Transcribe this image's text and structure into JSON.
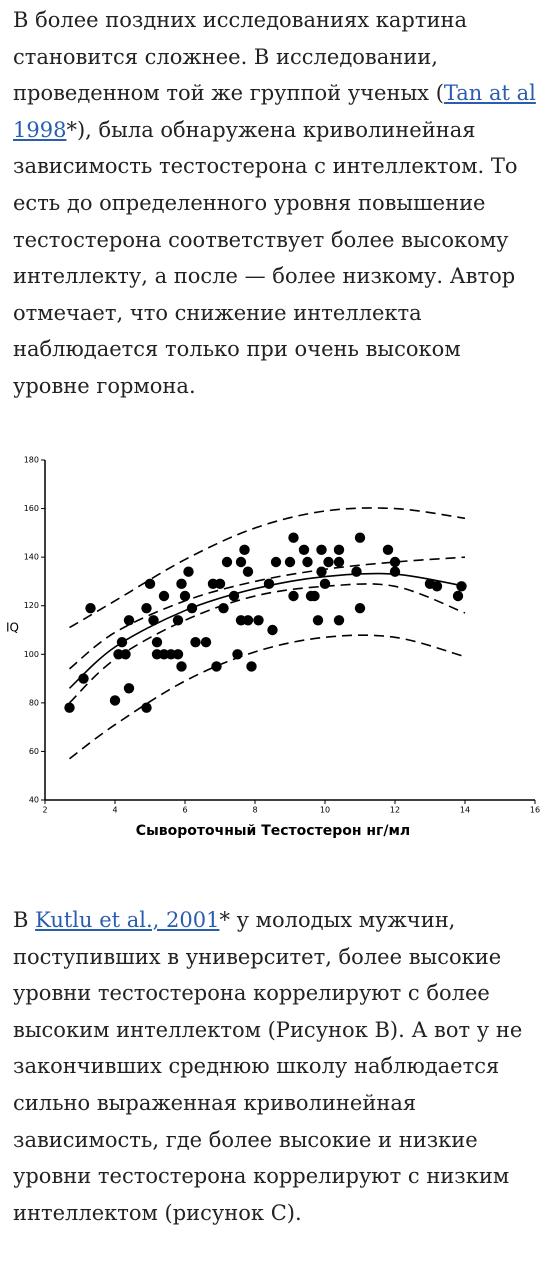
{
  "paragraphs": [
    {
      "before": "В более поздних исследованиях картина становится сложнее. В исследовании, проведенном той же группой ученых (",
      "link": "Tan at al 1998",
      "after": "*), была обнаружена криволинейная зависимость тестостерона с интеллектом. То есть до определенного уровня повышение тестостерона соответствует более высокому интеллекту, а после — более низкому. Автор отмечает, что снижение интеллекта наблюдается только при очень высоком уровне гормона."
    },
    {
      "before": "В ",
      "link": "Kutlu et al., 2001",
      "after": "* у молодых мужчин, поступивших в университет, более высокие уровни тестостерона коррелируют с более высоким интеллектом (Рисунок B). А вот у не закончивших среднюю школу наблюдается сильно выраженная криволинейная зависимость, где более высокие и низкие уровни тестостерона коррелируют с низким интеллектом (рисунок C)."
    }
  ],
  "chart_data": {
    "type": "scatter",
    "x_label": "Сывороточный Тестостерон нг/мл",
    "y_label": "IQ",
    "xlim": [
      2,
      16
    ],
    "xticks": [
      2,
      4,
      6,
      8,
      10,
      12,
      14,
      16
    ],
    "ylim": [
      40,
      180
    ],
    "yticks": [
      40,
      60,
      80,
      100,
      120,
      140,
      160,
      180
    ],
    "series": [
      {
        "type": "scatter",
        "color": "#000000",
        "x": [
          2.7,
          3.1,
          3.3,
          4.0,
          4.1,
          4.3,
          4.2,
          4.4,
          4.4,
          4.9,
          4.9,
          5.0,
          5.1,
          5.2,
          5.2,
          5.4,
          5.4,
          5.6,
          5.8,
          5.8,
          5.9,
          5.9,
          6.1,
          6.0,
          6.2,
          6.3,
          6.6,
          6.8,
          6.9,
          7.0,
          7.1,
          7.2,
          7.4,
          7.5,
          7.6,
          7.6,
          7.7,
          7.8,
          7.8,
          7.9,
          8.1,
          8.4,
          8.5,
          8.6,
          9.0,
          9.1,
          9.1,
          9.4,
          9.5,
          9.6,
          9.7,
          9.8,
          9.9,
          9.9,
          10.0,
          10.1,
          10.4,
          10.4,
          10.4,
          10.9,
          11.0,
          11.0,
          11.8,
          12.0,
          12.0,
          13.0,
          13.2,
          13.8,
          13.9
        ],
        "values": [
          78,
          90,
          119,
          81,
          100,
          100,
          105,
          86,
          114,
          119,
          78,
          129,
          114,
          105,
          100,
          100,
          124,
          100,
          100,
          114,
          95,
          129,
          134,
          124,
          119,
          105,
          105,
          129,
          95,
          129,
          119,
          138,
          124,
          100,
          138,
          114,
          143,
          114,
          134,
          95,
          114,
          129,
          110,
          138,
          138,
          124,
          148,
          143,
          138,
          124,
          124,
          114,
          143,
          134,
          129,
          138,
          143,
          138,
          114,
          134,
          148,
          119,
          143,
          134,
          138,
          129,
          128,
          124,
          128
        ]
      },
      {
        "type": "line",
        "color": "#000000",
        "dash": false,
        "x": [
          2.7,
          4,
          6,
          8,
          10,
          12,
          14
        ],
        "values": [
          86,
          103,
          118,
          127,
          132,
          133,
          128
        ]
      },
      {
        "type": "line",
        "color": "#000000",
        "dash": true,
        "x": [
          2.7,
          4,
          6,
          8,
          10,
          12,
          14
        ],
        "values": [
          94,
          109,
          122,
          130,
          135,
          138,
          140
        ]
      },
      {
        "type": "line",
        "color": "#000000",
        "dash": true,
        "x": [
          2.7,
          4,
          6,
          8,
          10,
          12,
          14
        ],
        "values": [
          80,
          98,
          114,
          124,
          128,
          128,
          117
        ]
      },
      {
        "type": "line",
        "color": "#000000",
        "dash": true,
        "x": [
          2.7,
          4,
          6,
          8,
          10,
          12,
          14
        ],
        "values": [
          111,
          122,
          139,
          152,
          159,
          160,
          156
        ]
      },
      {
        "type": "line",
        "color": "#000000",
        "dash": true,
        "x": [
          2.7,
          4,
          6,
          8,
          10,
          12,
          14
        ],
        "values": [
          57,
          71,
          89,
          101,
          107,
          107,
          99
        ]
      }
    ]
  }
}
